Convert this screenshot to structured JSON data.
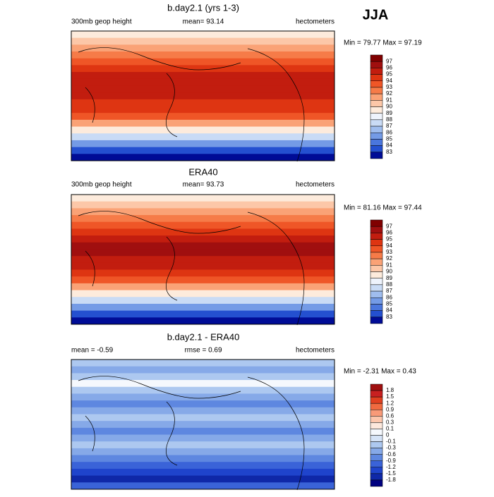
{
  "header": {
    "title": "JJA"
  },
  "panels": [
    {
      "title": "b.day2.1 (yrs 1-3)",
      "left": "300mb geop height",
      "center": "mean=  93.14",
      "right": "hectometers",
      "minmax": "Min =  79.77 Max =  97.19",
      "levels": [
        97,
        96,
        95,
        94,
        93,
        92,
        91,
        90,
        89,
        88,
        87,
        86,
        85,
        84,
        83
      ],
      "colors": [
        "#800000",
        "#a00f0f",
        "#c21d0f",
        "#de3512",
        "#ef5627",
        "#f67b48",
        "#faa276",
        "#fcc7a8",
        "#fdebdc",
        "#eef3fc",
        "#c9dbf5",
        "#9fbdee",
        "#749be6",
        "#4a76dd",
        "#2450d0",
        "#000c96"
      ]
    },
    {
      "title": "ERA40",
      "left": "300mb geop height",
      "center": "mean=  93.73",
      "right": "hectometers",
      "minmax": "Min =  81.16 Max =  97.44",
      "levels": [
        97,
        96,
        95,
        94,
        93,
        92,
        91,
        90,
        89,
        88,
        87,
        86,
        85,
        84,
        83
      ],
      "colors": [
        "#800000",
        "#a00f0f",
        "#c21d0f",
        "#de3512",
        "#ef5627",
        "#f67b48",
        "#faa276",
        "#fcc7a8",
        "#fdebdc",
        "#eef3fc",
        "#c9dbf5",
        "#9fbdee",
        "#749be6",
        "#4a76dd",
        "#2450d0",
        "#000c96"
      ]
    },
    {
      "title": "b.day2.1 - ERA40",
      "left": "mean =  -0.59",
      "center": "rmse =   0.69",
      "right": "hectometers",
      "minmax": "Min =  -2.31 Max =   0.43",
      "levels": [
        1.8,
        1.5,
        1.2,
        0.9,
        0.6,
        0.3,
        0.1,
        0,
        -0.1,
        -0.3,
        -0.6,
        -0.9,
        -1.2,
        -1.5,
        -1.8
      ],
      "colors": [
        "#a01010",
        "#c82020",
        "#e04020",
        "#f06a40",
        "#f89a78",
        "#fcc6ac",
        "#fde8dc",
        "#f5f8fd",
        "#d5e3f7",
        "#adc8f0",
        "#86a9e8",
        "#5e87e0",
        "#3a63d8",
        "#1f44cc",
        "#0f28a8",
        "#000080"
      ]
    }
  ]
}
